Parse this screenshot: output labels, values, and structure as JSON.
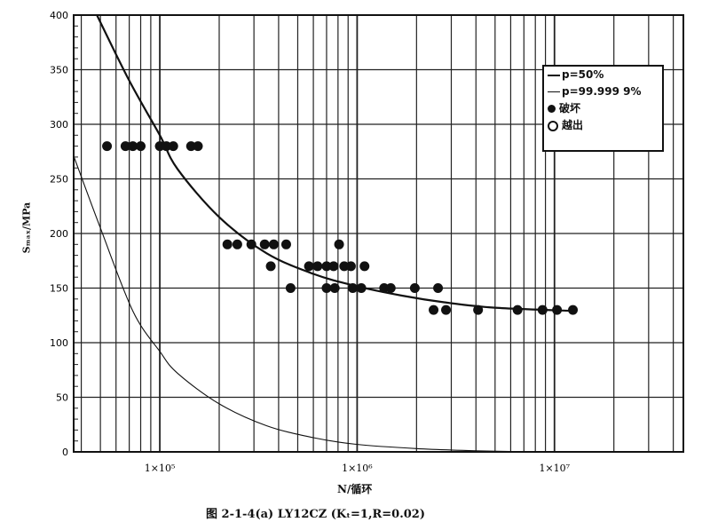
{
  "chart_data": {
    "type": "scatter",
    "title": "",
    "caption": "图 2-1-4(a)   LY12CZ (Kₜ=1,R=0.02)",
    "xlabel": "N/循环",
    "ylabel": "Sₘₐₓ/MPa",
    "xscale": "log",
    "xlim": [
      36600,
      45000000
    ],
    "ylim": [
      0,
      400
    ],
    "grid": true,
    "x_tick_labels": [
      {
        "value": 100000,
        "label": "1×10⁵"
      },
      {
        "value": 1000000,
        "label": "1×10⁶"
      },
      {
        "value": 10000000,
        "label": "1×10⁷"
      }
    ],
    "y_ticks": [
      0,
      50,
      100,
      150,
      200,
      250,
      300,
      350,
      400
    ],
    "legend": {
      "placement": "top-right",
      "entries": [
        "p=50%",
        "p=99.999 9%",
        "破坏",
        "越出"
      ]
    },
    "series": [
      {
        "name": "p=50%",
        "kind": "line",
        "color": "#111111",
        "points": [
          [
            48000,
            400
          ],
          [
            70000,
            340
          ],
          [
            100000,
            290
          ],
          [
            123000,
            259
          ],
          [
            200000,
            215
          ],
          [
            347000,
            182
          ],
          [
            600000,
            163
          ],
          [
            980000,
            152
          ],
          [
            1700000,
            143
          ],
          [
            2760000,
            137
          ],
          [
            5000000,
            132
          ],
          [
            13000000,
            129
          ]
        ]
      },
      {
        "name": "p=99.999 9%",
        "kind": "line",
        "color": "#111111",
        "points": [
          [
            36600,
            271
          ],
          [
            50000,
            205
          ],
          [
            73000,
            129
          ],
          [
            100000,
            92
          ],
          [
            123000,
            72
          ],
          [
            200000,
            44
          ],
          [
            347000,
            24
          ],
          [
            600000,
            13
          ],
          [
            980000,
            7
          ],
          [
            2000000,
            3
          ],
          [
            4000000,
            1
          ],
          [
            8000000,
            0
          ]
        ]
      },
      {
        "name": "破坏",
        "kind": "scatter",
        "marker": "filled",
        "points": [
          [
            54000,
            280
          ],
          [
            67000,
            280
          ],
          [
            73000,
            280
          ],
          [
            80000,
            280
          ],
          [
            100000,
            280
          ],
          [
            108000,
            280
          ],
          [
            117000,
            280
          ],
          [
            144000,
            280
          ],
          [
            156000,
            280
          ],
          [
            220000,
            190
          ],
          [
            247000,
            190
          ],
          [
            291000,
            190
          ],
          [
            340000,
            190
          ],
          [
            378000,
            190
          ],
          [
            437000,
            190
          ],
          [
            810000,
            190
          ],
          [
            365000,
            170
          ],
          [
            570000,
            170
          ],
          [
            630000,
            170
          ],
          [
            700000,
            170
          ],
          [
            760000,
            170
          ],
          [
            860000,
            170
          ],
          [
            930000,
            170
          ],
          [
            1090000,
            170
          ],
          [
            460000,
            150
          ],
          [
            700000,
            150
          ],
          [
            770000,
            150
          ],
          [
            950000,
            150
          ],
          [
            1050000,
            150
          ],
          [
            1370000,
            150
          ],
          [
            1480000,
            150
          ],
          [
            1960000,
            150
          ],
          [
            2570000,
            150
          ],
          [
            2440000,
            130
          ],
          [
            2820000,
            130
          ],
          [
            4100000,
            130
          ],
          [
            6500000,
            130
          ],
          [
            8700000,
            130
          ],
          [
            10300000,
            130
          ],
          [
            12400000,
            130
          ]
        ]
      },
      {
        "name": "越出",
        "kind": "scatter",
        "marker": "open",
        "points": []
      }
    ]
  }
}
